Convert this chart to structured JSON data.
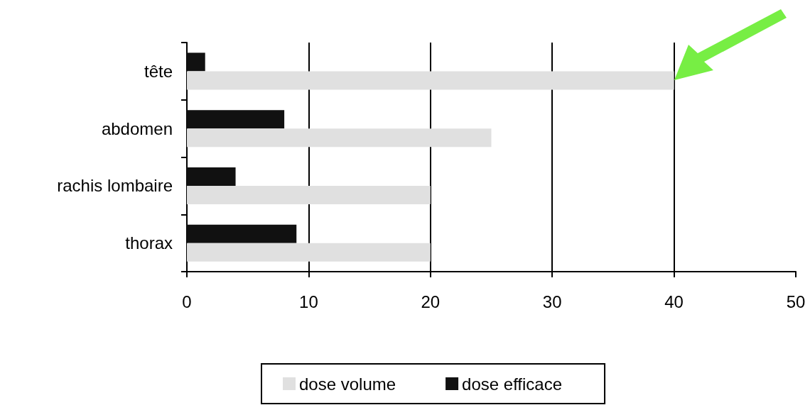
{
  "chart_data": {
    "type": "bar",
    "orientation": "horizontal",
    "categories": [
      "tête",
      "abdomen",
      "rachis lombaire",
      "thorax"
    ],
    "series": [
      {
        "name": "dose volume",
        "color": "#e0e0e0",
        "values": [
          40,
          25,
          20,
          20
        ]
      },
      {
        "name": "dose efficace",
        "color": "#111111",
        "values": [
          1.5,
          8,
          4,
          9
        ]
      }
    ],
    "xlim": [
      0,
      50
    ],
    "xticks": [
      0,
      10,
      20,
      30,
      40,
      50
    ],
    "grid": "x",
    "legend": "bottom"
  }
}
